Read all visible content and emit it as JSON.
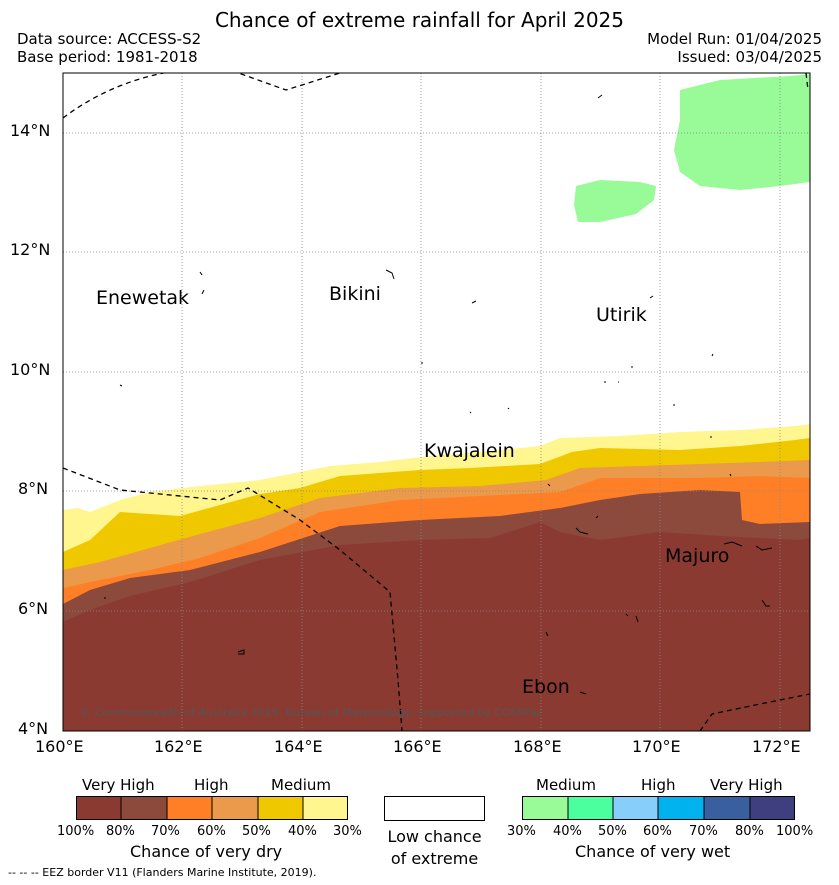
{
  "header": {
    "title": "Chance of extreme rainfall for April 2025",
    "data_source": "Data source: ACCESS-S2",
    "base_period": "Base period: 1981-2018",
    "model_run": "Model Run: 01/04/2025",
    "issued": "Issued: 03/04/2025"
  },
  "map": {
    "lat_labels": [
      "14°N",
      "12°N",
      "10°N",
      "8°N",
      "6°N",
      "4°N"
    ],
    "lon_labels": [
      "160°E",
      "162°E",
      "164°E",
      "166°E",
      "168°E",
      "170°E",
      "172°E"
    ],
    "places": {
      "enewetak": "Enewetak",
      "bikini": "Bikini",
      "utirik": "Utirik",
      "kwajalein": "Kwajalein",
      "majuro": "Majuro",
      "ebon": "Ebon"
    },
    "copyright": "© Commonwealth of Australia 2025, Bureau of Meteorology, supported by COSPPac"
  },
  "legend": {
    "dry": {
      "levels": [
        "Very High",
        "High",
        "Medium"
      ],
      "ticks": [
        "100%",
        "80%",
        "70%",
        "60%",
        "50%",
        "40%",
        "30%"
      ],
      "title": "Chance of very dry",
      "colors": [
        "#8b3a32",
        "#8b4a3c",
        "#ff7f27",
        "#ea9a4a",
        "#efc800",
        "#fff68f"
      ]
    },
    "low": {
      "line1": "Low chance",
      "line2": "of extreme"
    },
    "wet": {
      "levels": [
        "Medium",
        "High",
        "Very High"
      ],
      "ticks": [
        "30%",
        "40%",
        "50%",
        "60%",
        "70%",
        "80%",
        "100%"
      ],
      "title": "Chance of very wet",
      "colors": [
        "#98fb98",
        "#4cff9e",
        "#87cefa",
        "#00b2ee",
        "#3a5f9f",
        "#3f3f7f"
      ]
    }
  },
  "footer": "--  --  -- EEZ border V11 (Flanders Marine Institute, 2019)."
}
